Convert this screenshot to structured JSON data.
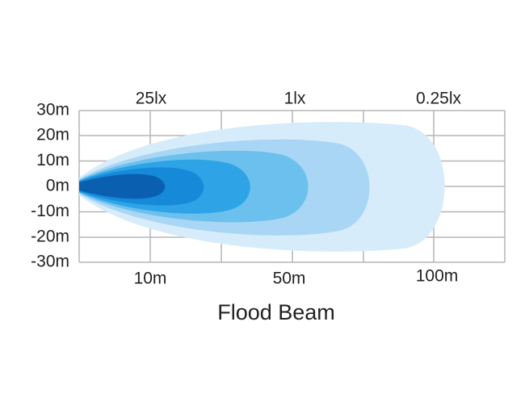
{
  "title": "Flood Beam",
  "y_labels": [
    "30m",
    "20m",
    "10m",
    "0m",
    "-10m",
    "-20m",
    "-30m"
  ],
  "lux_labels": [
    "25lx",
    "1lx",
    "0.25lx"
  ],
  "distance_labels": [
    "10m",
    "50m",
    "100m"
  ]
}
